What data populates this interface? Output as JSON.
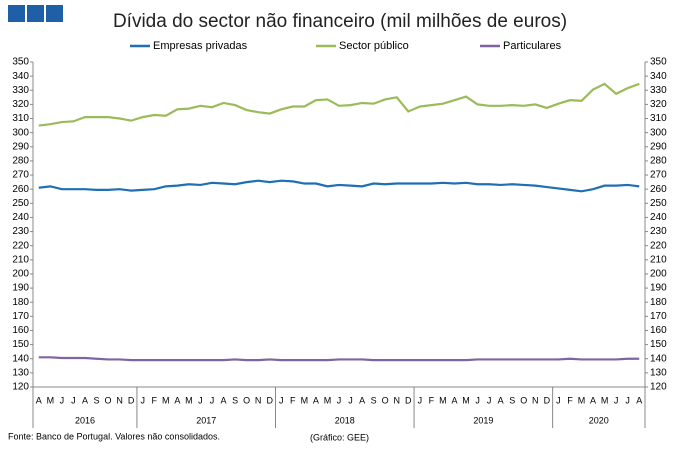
{
  "chart_data": {
    "type": "line",
    "title": "Dívida do sector não financeiro (mil milhões de euros)",
    "source": "Fonte: Banco de Portugal. Valores não consolidados.",
    "credit": "(Gráfico: GEE)",
    "groups": [
      {
        "label": "2016",
        "months": [
          "A",
          "M",
          "J",
          "J",
          "A",
          "S",
          "O",
          "N",
          "D"
        ]
      },
      {
        "label": "2017",
        "months": [
          "J",
          "F",
          "M",
          "A",
          "M",
          "J",
          "J",
          "A",
          "S",
          "O",
          "N",
          "D"
        ]
      },
      {
        "label": "2018",
        "months": [
          "J",
          "F",
          "M",
          "A",
          "M",
          "J",
          "J",
          "A",
          "S",
          "O",
          "N",
          "D"
        ]
      },
      {
        "label": "2019",
        "months": [
          "J",
          "F",
          "M",
          "A",
          "M",
          "J",
          "J",
          "A",
          "S",
          "O",
          "N",
          "D"
        ]
      },
      {
        "label": "2020",
        "months": [
          "J",
          "F",
          "M",
          "A",
          "M",
          "J",
          "J",
          "A"
        ]
      }
    ],
    "series": [
      {
        "name": "Empresas privadas",
        "color": "#1f6fb4",
        "values": [
          261,
          262,
          260,
          260,
          260,
          259.5,
          259.5,
          260,
          259,
          259.5,
          260,
          262,
          262.5,
          263.5,
          263,
          264.5,
          264,
          263.5,
          265,
          266,
          265,
          266,
          265.5,
          264,
          264,
          262,
          263,
          262.5,
          262,
          264,
          263.5,
          264,
          264,
          264,
          264,
          264.5,
          264,
          264.5,
          263.5,
          263.5,
          263,
          263.5,
          263,
          262.5,
          261.5,
          260.5,
          259.5,
          258.5,
          260,
          262.5,
          262.5,
          263,
          262
        ]
      },
      {
        "name": "Sector público",
        "color": "#9bbb59",
        "values": [
          305,
          306,
          307.5,
          308,
          311,
          311,
          311,
          310,
          308.5,
          311,
          312.5,
          312,
          316.5,
          317,
          319,
          318,
          321,
          319.5,
          316,
          314.5,
          313.5,
          316.5,
          318.5,
          318.5,
          323,
          323.5,
          319,
          319.5,
          321,
          320.5,
          323.5,
          325,
          315,
          318.5,
          319.5,
          320.5,
          323,
          325.5,
          320,
          319,
          319,
          319.5,
          319,
          320,
          317.5,
          320.5,
          323,
          322.5,
          330.5,
          334.5,
          327.5,
          331.5,
          334.5
        ]
      },
      {
        "name": "Particulares",
        "color": "#8064a2",
        "values": [
          141,
          141,
          140.5,
          140.5,
          140.5,
          140,
          139.5,
          139.5,
          139,
          139,
          139,
          139,
          139,
          139,
          139,
          139,
          139,
          139.5,
          139,
          139,
          139.5,
          139,
          139,
          139,
          139,
          139,
          139.5,
          139.5,
          139.5,
          139,
          139,
          139,
          139,
          139,
          139,
          139,
          139,
          139,
          139.5,
          139.5,
          139.5,
          139.5,
          139.5,
          139.5,
          139.5,
          139.5,
          140,
          139.5,
          139.5,
          139.5,
          139.5,
          140,
          140
        ]
      }
    ],
    "ylim": [
      120,
      350
    ],
    "yticks": [
      120,
      130,
      140,
      150,
      160,
      170,
      180,
      190,
      200,
      210,
      220,
      230,
      240,
      250,
      260,
      270,
      280,
      290,
      300,
      310,
      320,
      330,
      340,
      350
    ],
    "y2lim": [
      120,
      350
    ],
    "y2ticks": [
      120,
      130,
      140,
      150,
      160,
      170,
      180,
      190,
      200,
      210,
      220,
      230,
      240,
      250,
      260,
      270,
      280,
      290,
      300,
      310,
      320,
      330,
      340,
      350
    ],
    "grid": false
  }
}
